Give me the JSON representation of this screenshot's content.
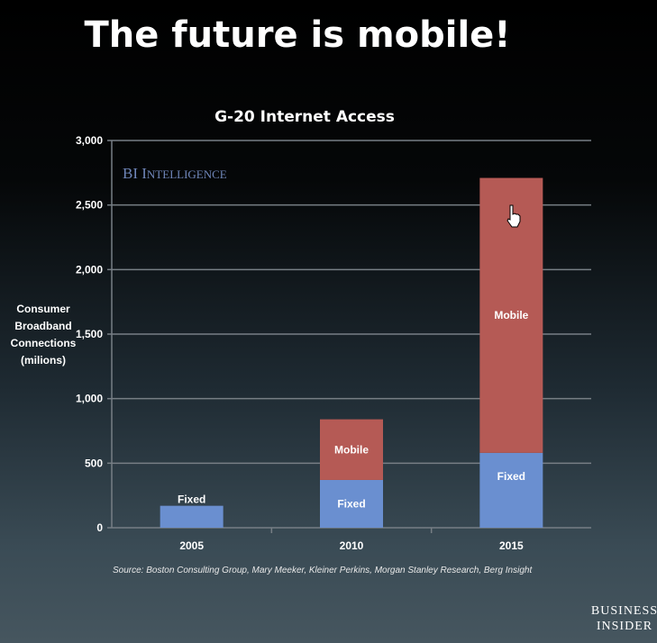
{
  "headline": "The future is mobile!",
  "watermark": "BI Intelligence",
  "brand": [
    "BUSINESS",
    "INSIDER"
  ],
  "source": "Source: Boston Consulting Group, Mary Meeker, Kleiner Perkins, Morgan Stanley Research, Berg Insight",
  "colors": {
    "fixed": "#6a8fd0",
    "mobile": "#b55a55",
    "grid": "#777f85"
  },
  "chart_data": {
    "type": "bar",
    "stacked": true,
    "title": "G-20 Internet Access",
    "ylabel": [
      "Consumer",
      "Broadband",
      "Connections",
      "(milions)"
    ],
    "xlabel": "",
    "categories": [
      "2005",
      "2010",
      "2015"
    ],
    "ylim": [
      0,
      3000
    ],
    "yticks": [
      0,
      500,
      1000,
      1500,
      2000,
      2500,
      3000
    ],
    "ytick_labels": [
      "0",
      "500",
      "1,000",
      "1,500",
      "2,000",
      "2,500",
      "3,000"
    ],
    "grid": true,
    "series": [
      {
        "name": "Fixed",
        "values": [
          170,
          370,
          580
        ],
        "color": "#6a8fd0"
      },
      {
        "name": "Mobile",
        "values": [
          0,
          470,
          2130
        ],
        "color": "#b55a55"
      }
    ]
  }
}
